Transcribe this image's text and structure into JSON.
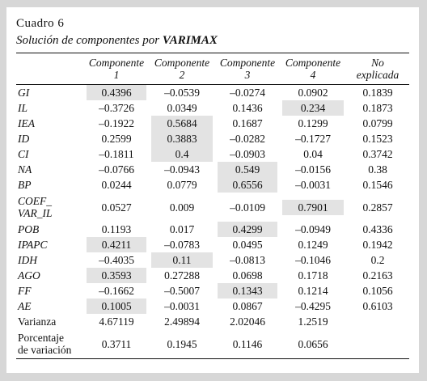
{
  "caption": "Cuadro 6",
  "title_prefix": "Solución de componentes por ",
  "title_bold": "VARIMAX",
  "headers": [
    "",
    "Componente 1",
    "Componente 2",
    "Componente 3",
    "Componente 4",
    "No explicada"
  ],
  "rows": [
    {
      "label": "GI",
      "values": [
        "0.4396",
        "–0.0539",
        "–0.0274",
        "0.0902",
        "0.1839"
      ],
      "highlight": 1
    },
    {
      "label": "IL",
      "values": [
        "–0.3726",
        "0.0349",
        "0.1436",
        "0.234",
        "0.1873"
      ],
      "highlight": 4
    },
    {
      "label": "IEA",
      "values": [
        "–0.1922",
        "0.5684",
        "0.1687",
        "0.1299",
        "0.0799"
      ],
      "highlight": 2
    },
    {
      "label": "ID",
      "values": [
        "0.2599",
        "0.3883",
        "–0.0282",
        "–0.1727",
        "0.1523"
      ],
      "highlight": 2
    },
    {
      "label": "CI",
      "values": [
        "–0.1811",
        "0.4",
        "–0.0903",
        "0.04",
        "0.3742"
      ],
      "highlight": 2
    },
    {
      "label": "NA",
      "values": [
        "–0.0766",
        "–0.0943",
        "0.549",
        "–0.0156",
        "0.38"
      ],
      "highlight": 3
    },
    {
      "label": "BP",
      "values": [
        "0.0244",
        "0.0779",
        "0.6556",
        "–0.0031",
        "0.1546"
      ],
      "highlight": 3
    },
    {
      "label": "COEF_\nVAR_IL",
      "values": [
        "0.0527",
        "0.009",
        "–0.0109",
        "0.7901",
        "0.2857"
      ],
      "highlight": 4,
      "tall": true
    },
    {
      "label": "POB",
      "values": [
        "0.1193",
        "0.017",
        "0.4299",
        "–0.0949",
        "0.4336"
      ],
      "highlight": 3
    },
    {
      "label": "IPAPC",
      "values": [
        "0.4211",
        "–0.0783",
        "0.0495",
        "0.1249",
        "0.1942"
      ],
      "highlight": 1
    },
    {
      "label": "IDH",
      "values": [
        "–0.4035",
        "0.11",
        "–0.0813",
        "–0.1046",
        "0.2"
      ],
      "highlight": 2
    },
    {
      "label": "AGO",
      "values": [
        "0.3593",
        "0.27288",
        "0.0698",
        "0.1718",
        "0.2163"
      ],
      "highlight": 1
    },
    {
      "label": "FF",
      "values": [
        "–0.1662",
        "–0.5007",
        "0.1343",
        "0.1214",
        "0.1056"
      ],
      "highlight": 3
    },
    {
      "label": "AE",
      "values": [
        "0.1005",
        "–0.0031",
        "0.0867",
        "–0.4295",
        "0.6103"
      ],
      "highlight": 1
    },
    {
      "label": "Varianza",
      "values": [
        "4.67119",
        "2.49894",
        "2.02046",
        "1.2519",
        ""
      ],
      "plain": true
    },
    {
      "label": "Porcentaje\nde variación",
      "values": [
        "0.3711",
        "0.1945",
        "0.1146",
        "0.0656",
        ""
      ],
      "plain": true,
      "tall": true
    }
  ]
}
